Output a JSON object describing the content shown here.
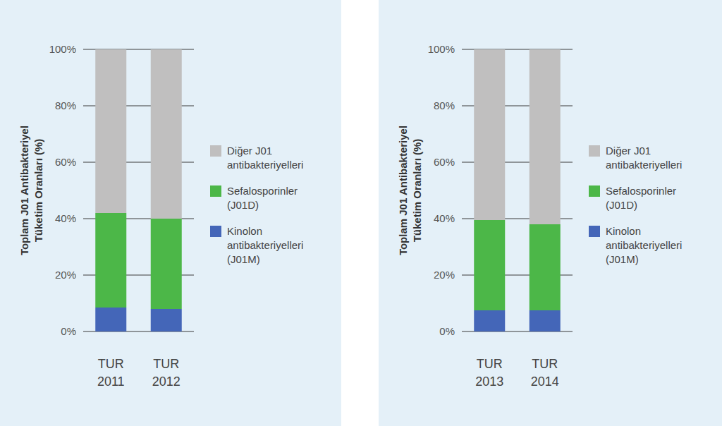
{
  "chart_data": [
    {
      "type": "bar",
      "stacked": true,
      "grid": true,
      "legend": "right",
      "y_label": "Toplam J01 Antibakteriyel\nTüketim Oranları (%)",
      "categories": [
        "TUR\n2011",
        "TUR\n2012"
      ],
      "ylim": [
        0,
        100
      ],
      "yticks": [
        {
          "value": 0,
          "label": "0%"
        },
        {
          "value": 20,
          "label": "20%"
        },
        {
          "value": 40,
          "label": "40%"
        },
        {
          "value": 60,
          "label": "60%"
        },
        {
          "value": 80,
          "label": "80%"
        },
        {
          "value": 100,
          "label": "100%"
        }
      ],
      "series": [
        {
          "name": "Kinolon\nantibakteriyelleri\n(J01M)",
          "color": "#4466b8",
          "values": [
            8.5,
            8
          ]
        },
        {
          "name": "Sefalosporinler\n(J01D)",
          "color": "#4cb748",
          "values": [
            33.5,
            32
          ]
        },
        {
          "name": "Diğer J01\nantibakteriyelleri",
          "color": "#c0bfbf",
          "values": [
            58,
            60
          ]
        }
      ]
    },
    {
      "type": "bar",
      "stacked": true,
      "grid": true,
      "legend": "right",
      "y_label": "Toplam J01 Antibakteriyel\nTüketim Oranları (%)",
      "categories": [
        "TUR\n2013",
        "TUR\n2014"
      ],
      "ylim": [
        0,
        100
      ],
      "yticks": [
        {
          "value": 0,
          "label": "0%"
        },
        {
          "value": 20,
          "label": "20%"
        },
        {
          "value": 40,
          "label": "40%"
        },
        {
          "value": 60,
          "label": "60%"
        },
        {
          "value": 80,
          "label": "80%"
        },
        {
          "value": 100,
          "label": "100%"
        }
      ],
      "series": [
        {
          "name": "Kinolon\nantibakteriyelleri\n(J01M)",
          "color": "#4466b8",
          "values": [
            7.5,
            7.5
          ]
        },
        {
          "name": "Sefalosporinler\n(J01D)",
          "color": "#4cb748",
          "values": [
            32,
            30.5
          ]
        },
        {
          "name": "Diğer J01\nantibakteriyelleri",
          "color": "#c0bfbf",
          "values": [
            60.5,
            62
          ]
        }
      ]
    }
  ]
}
